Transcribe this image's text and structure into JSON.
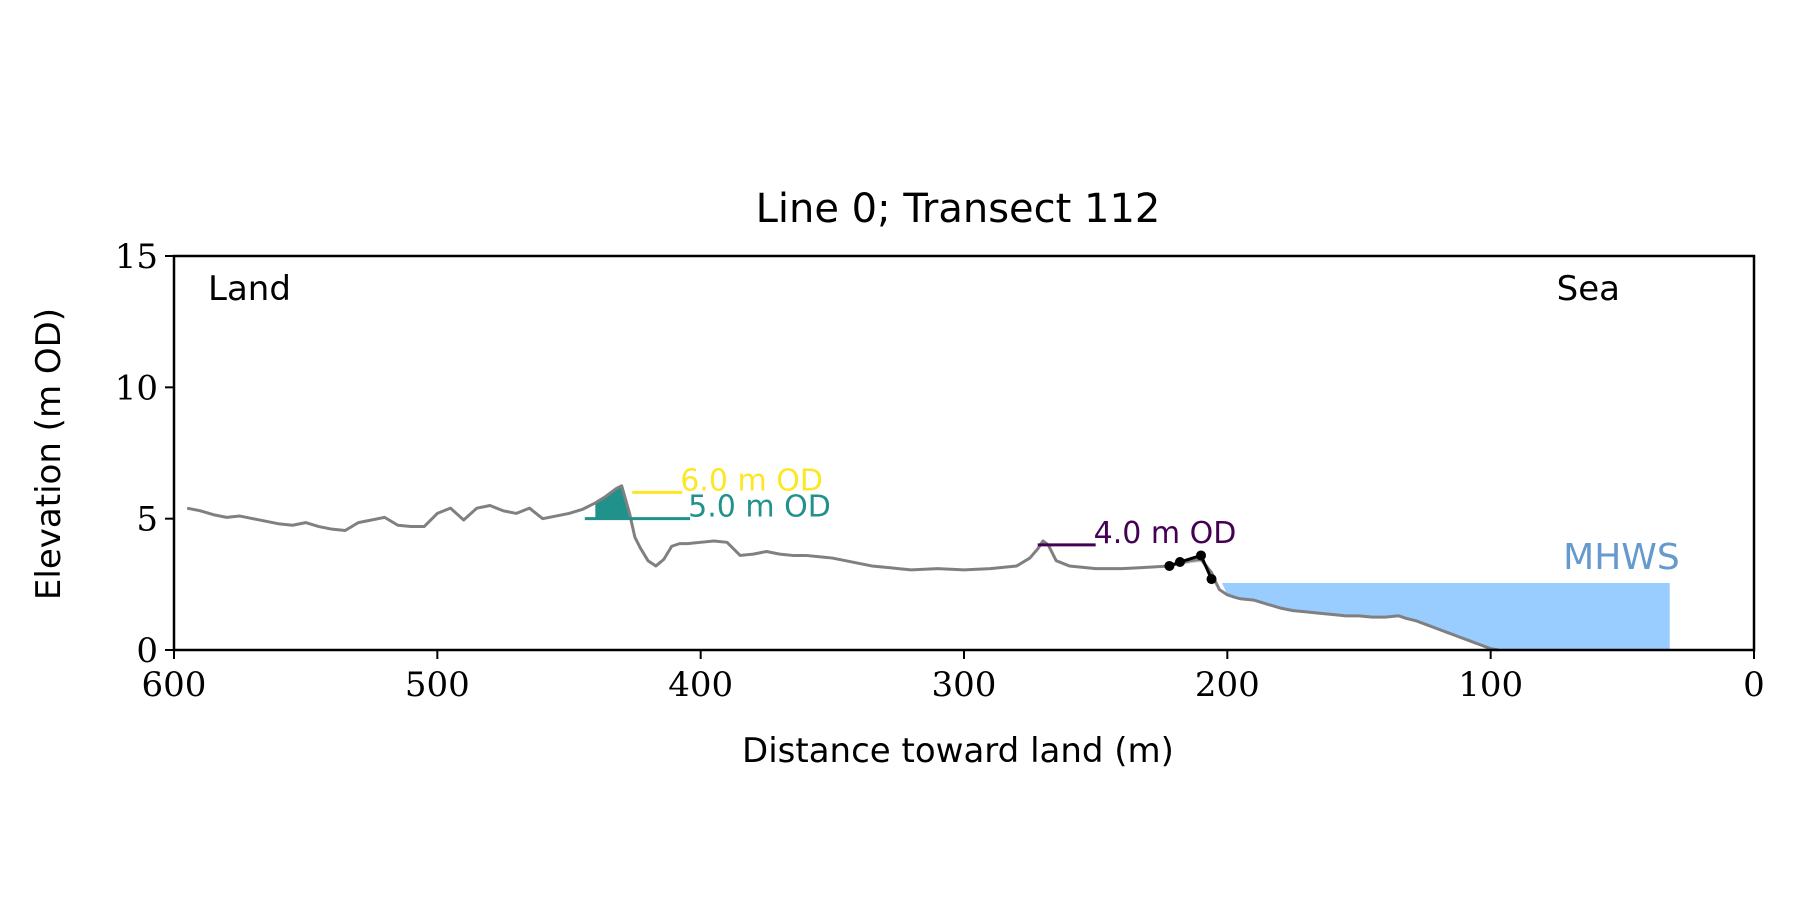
{
  "chart_data": {
    "type": "line",
    "title": "Line 0; Transect 112",
    "xlabel": "Distance toward land (m)",
    "ylabel": "Elevation (m OD)",
    "xlim": [
      600,
      0
    ],
    "ylim": [
      0,
      15
    ],
    "x_ticks": [
      600,
      500,
      400,
      300,
      200,
      100,
      0
    ],
    "y_ticks": [
      0,
      5,
      10,
      15
    ],
    "grid": false,
    "corner_labels": {
      "left": "Land",
      "right": "Sea"
    },
    "profile": {
      "color": "#808080",
      "x": [
        595,
        590,
        585,
        580,
        575,
        570,
        565,
        560,
        555,
        550,
        545,
        540,
        535,
        530,
        525,
        520,
        515,
        510,
        505,
        500,
        495,
        490,
        485,
        480,
        475,
        470,
        465,
        460,
        455,
        450,
        445,
        440,
        436,
        432,
        430,
        427,
        425,
        423,
        420,
        417,
        414,
        411,
        408,
        405,
        400,
        395,
        390,
        385,
        380,
        375,
        370,
        365,
        360,
        355,
        350,
        345,
        340,
        335,
        330,
        325,
        320,
        310,
        300,
        290,
        280,
        275,
        272,
        270,
        268,
        265,
        260,
        250,
        240,
        230,
        222,
        218,
        214,
        210,
        208,
        206,
        205,
        203,
        200,
        197,
        195,
        190,
        185,
        180,
        175,
        170,
        165,
        160,
        155,
        150,
        145,
        140,
        135,
        132,
        128,
        124,
        120,
        116,
        112,
        108,
        104,
        100,
        97
      ],
      "y": [
        5.4,
        5.3,
        5.15,
        5.05,
        5.1,
        5.0,
        4.9,
        4.8,
        4.75,
        4.85,
        4.7,
        4.6,
        4.55,
        4.85,
        4.95,
        5.05,
        4.75,
        4.7,
        4.7,
        5.2,
        5.4,
        4.95,
        5.4,
        5.5,
        5.3,
        5.2,
        5.4,
        5.0,
        5.1,
        5.2,
        5.35,
        5.6,
        5.85,
        6.15,
        6.25,
        5.2,
        4.3,
        3.9,
        3.4,
        3.2,
        3.45,
        3.95,
        4.05,
        4.05,
        4.1,
        4.15,
        4.1,
        3.6,
        3.65,
        3.75,
        3.65,
        3.6,
        3.6,
        3.55,
        3.5,
        3.4,
        3.3,
        3.2,
        3.15,
        3.1,
        3.05,
        3.1,
        3.05,
        3.1,
        3.2,
        3.5,
        3.85,
        4.15,
        4.0,
        3.4,
        3.2,
        3.1,
        3.1,
        3.15,
        3.2,
        3.3,
        3.4,
        3.45,
        3.2,
        2.95,
        2.7,
        2.3,
        2.1,
        2.0,
        1.95,
        1.9,
        1.75,
        1.6,
        1.5,
        1.45,
        1.4,
        1.35,
        1.3,
        1.3,
        1.25,
        1.25,
        1.3,
        1.2,
        1.1,
        0.95,
        0.8,
        0.65,
        0.5,
        0.35,
        0.2,
        0.05,
        0.0
      ]
    },
    "crest_points": {
      "color": "#000000",
      "x": [
        222,
        218,
        210,
        206
      ],
      "y": [
        3.2,
        3.35,
        3.6,
        2.7
      ]
    },
    "crest_fill": {
      "color": "#d3d3d3",
      "x": [
        222,
        218,
        210,
        206,
        203
      ],
      "y_top": [
        3.2,
        3.35,
        3.6,
        2.7,
        2.3
      ],
      "y_bottom": [
        3.2,
        3.25,
        3.35,
        2.75,
        2.3
      ]
    },
    "threshold_lines": [
      {
        "label": "6.0 m OD",
        "level": 6.0,
        "x_start": 426,
        "x_end": 407,
        "color": "#fde725"
      },
      {
        "label": "5.0 m OD",
        "level": 5.0,
        "x_start": 444,
        "x_end": 404,
        "color": "#21918c",
        "fill_above": true
      },
      {
        "label": "4.0 m OD",
        "level": 4.0,
        "x_start": 272,
        "x_end": 250,
        "color": "#440154"
      }
    ],
    "mhws": {
      "label": "MHWS",
      "level": 2.55,
      "x_start": 202,
      "x_end": 32,
      "fill_color": "#99ccff",
      "label_color": "#6699cc"
    }
  }
}
